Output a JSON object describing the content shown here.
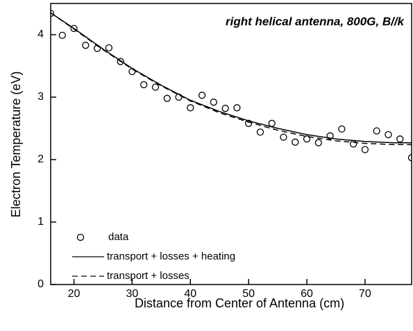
{
  "chart_data": {
    "type": "scatter",
    "title": "right helical antenna, 800G, B//k",
    "x_label": "Distance from Center of Antenna (cm)",
    "y_label": "Electron Temperature (eV)",
    "xlim": [
      16,
      78
    ],
    "xticks": [
      20,
      30,
      40,
      50,
      60,
      70
    ],
    "ylim": [
      0,
      4.5
    ],
    "yticks": [
      0,
      1,
      2,
      3,
      4
    ],
    "legend": "lower left",
    "series": [
      {
        "name": "data",
        "style": "markers",
        "color": "#000000",
        "x": [
          16,
          18,
          20,
          22,
          24,
          26,
          28,
          30,
          32,
          34,
          36,
          38,
          40,
          42,
          44,
          46,
          48,
          50,
          52,
          54,
          56,
          58,
          60,
          62,
          64,
          66,
          68,
          70,
          72,
          74,
          76,
          78
        ],
        "values": [
          4.34,
          3.99,
          4.1,
          3.83,
          3.78,
          3.79,
          3.57,
          3.41,
          3.2,
          3.16,
          2.98,
          3.0,
          2.83,
          3.03,
          2.92,
          2.82,
          2.83,
          2.58,
          2.44,
          2.58,
          2.36,
          2.28,
          2.33,
          2.27,
          2.38,
          2.49,
          2.25,
          2.16,
          2.46,
          2.4,
          2.33,
          2.03
        ]
      },
      {
        "name": "transport + losses + heating",
        "style": "solid",
        "color": "#000000",
        "x": [
          16,
          20,
          25,
          30,
          35,
          40,
          45,
          50,
          55,
          60,
          65,
          70,
          75,
          78
        ],
        "values": [
          4.35,
          4.1,
          3.77,
          3.46,
          3.19,
          2.95,
          2.77,
          2.62,
          2.5,
          2.4,
          2.33,
          2.29,
          2.27,
          2.27
        ]
      },
      {
        "name": "transport + losses",
        "style": "dashed",
        "color": "#000000",
        "x": [
          16,
          20,
          25,
          30,
          35,
          40,
          45,
          50,
          55,
          60,
          65,
          70,
          75,
          78
        ],
        "values": [
          4.35,
          4.09,
          3.76,
          3.45,
          3.18,
          2.94,
          2.75,
          2.6,
          2.47,
          2.37,
          2.3,
          2.26,
          2.24,
          2.24
        ]
      }
    ]
  }
}
